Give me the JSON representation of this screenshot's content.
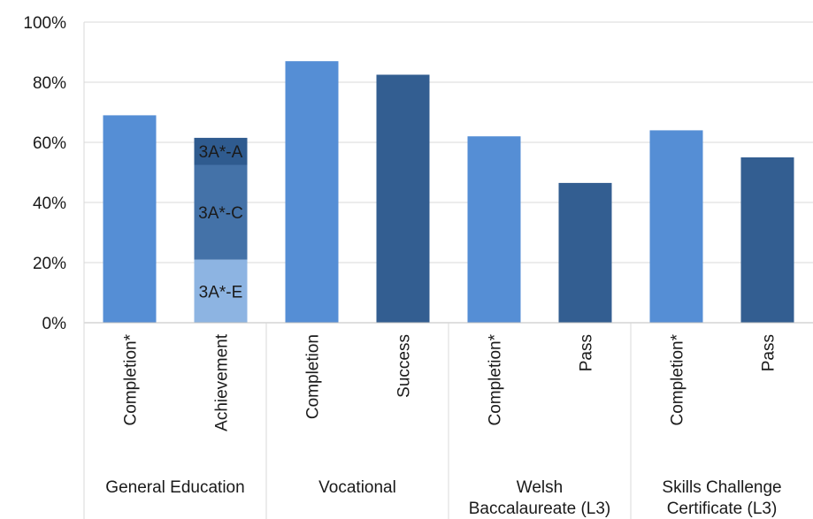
{
  "chart_data": {
    "type": "bar",
    "stacked_bar_category": "Achievement",
    "ylim": [
      0,
      100
    ],
    "yticks": [
      "0%",
      "20%",
      "40%",
      "60%",
      "80%",
      "100%"
    ],
    "ytick_values": [
      0,
      20,
      40,
      60,
      80,
      100
    ],
    "grid": true,
    "groups": [
      {
        "name": "General Education",
        "name_lines": [
          "General Education"
        ]
      },
      {
        "name": "Vocational",
        "name_lines": [
          "Vocational"
        ]
      },
      {
        "name": "Welsh Baccalaureate (L3)",
        "name_lines": [
          "Welsh",
          "Baccalaureate (L3)"
        ]
      },
      {
        "name": "Skills Challenge Certificate (L3)",
        "name_lines": [
          "Skills Challenge",
          "Certificate (L3)"
        ]
      }
    ],
    "bars": [
      {
        "group": 0,
        "label": "Completion*",
        "value": 69,
        "color": "#558ed5"
      },
      {
        "group": 0,
        "label": "Achievement",
        "value": 61.5,
        "stacked": true,
        "segments": [
          {
            "label": "3A*-E",
            "value": 21,
            "color": "#8db4e2"
          },
          {
            "label": "3A*-C",
            "value": 31.5,
            "color": "#4472a8"
          },
          {
            "label": "3A*-A",
            "value": 9,
            "color": "#2f5b8f"
          }
        ]
      },
      {
        "group": 1,
        "label": "Completion",
        "value": 87,
        "color": "#558ed5"
      },
      {
        "group": 1,
        "label": "Success",
        "value": 82.5,
        "color": "#335e91"
      },
      {
        "group": 2,
        "label": "Completion*",
        "value": 62,
        "color": "#558ed5"
      },
      {
        "group": 2,
        "label": "Pass",
        "value": 46.5,
        "color": "#335e91"
      },
      {
        "group": 3,
        "label": "Completion*",
        "value": 64,
        "color": "#558ed5"
      },
      {
        "group": 3,
        "label": "Pass",
        "value": 55,
        "color": "#335e91"
      }
    ]
  }
}
